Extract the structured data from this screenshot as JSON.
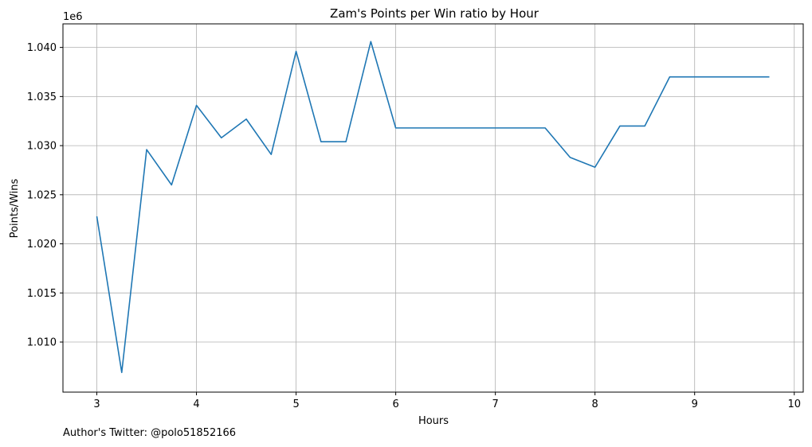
{
  "chart_data": {
    "type": "line",
    "title": "Zam's Points per Win ratio by Hour",
    "xlabel": "Hours",
    "ylabel": "Points/Wins",
    "y_offset_label": "1e6",
    "xlim": [
      2.66,
      10.09
    ],
    "ylim": [
      1.0049,
      1.0424
    ],
    "x_ticks": [
      3,
      4,
      5,
      6,
      7,
      8,
      9,
      10
    ],
    "y_ticks": [
      1.01,
      1.015,
      1.02,
      1.025,
      1.03,
      1.035,
      1.04
    ],
    "x_tick_labels": [
      "3",
      "4",
      "5",
      "6",
      "7",
      "8",
      "9",
      "10"
    ],
    "y_tick_labels": [
      "1.010",
      "1.015",
      "1.020",
      "1.025",
      "1.030",
      "1.035",
      "1.040"
    ],
    "grid": true,
    "series": [
      {
        "color": "#1f77b4",
        "x": [
          3.0,
          3.25,
          3.5,
          3.75,
          4.0,
          4.25,
          4.5,
          4.75,
          5.0,
          5.25,
          5.5,
          5.75,
          6.0,
          6.25,
          6.5,
          6.75,
          7.0,
          7.25,
          7.5,
          7.75,
          8.0,
          8.25,
          8.5,
          8.75,
          9.0,
          9.25,
          9.5,
          9.75
        ],
        "y": [
          1.0228,
          1.0069,
          1.0296,
          1.026,
          1.0341,
          1.0308,
          1.0327,
          1.0291,
          1.0396,
          1.0304,
          1.0304,
          1.0406,
          1.0318,
          1.0318,
          1.0318,
          1.0318,
          1.0318,
          1.0318,
          1.0318,
          1.0288,
          1.0278,
          1.032,
          1.032,
          1.037,
          1.037,
          1.037,
          1.037,
          1.037
        ]
      }
    ]
  },
  "footnote": "Author's Twitter: @polo51852166"
}
